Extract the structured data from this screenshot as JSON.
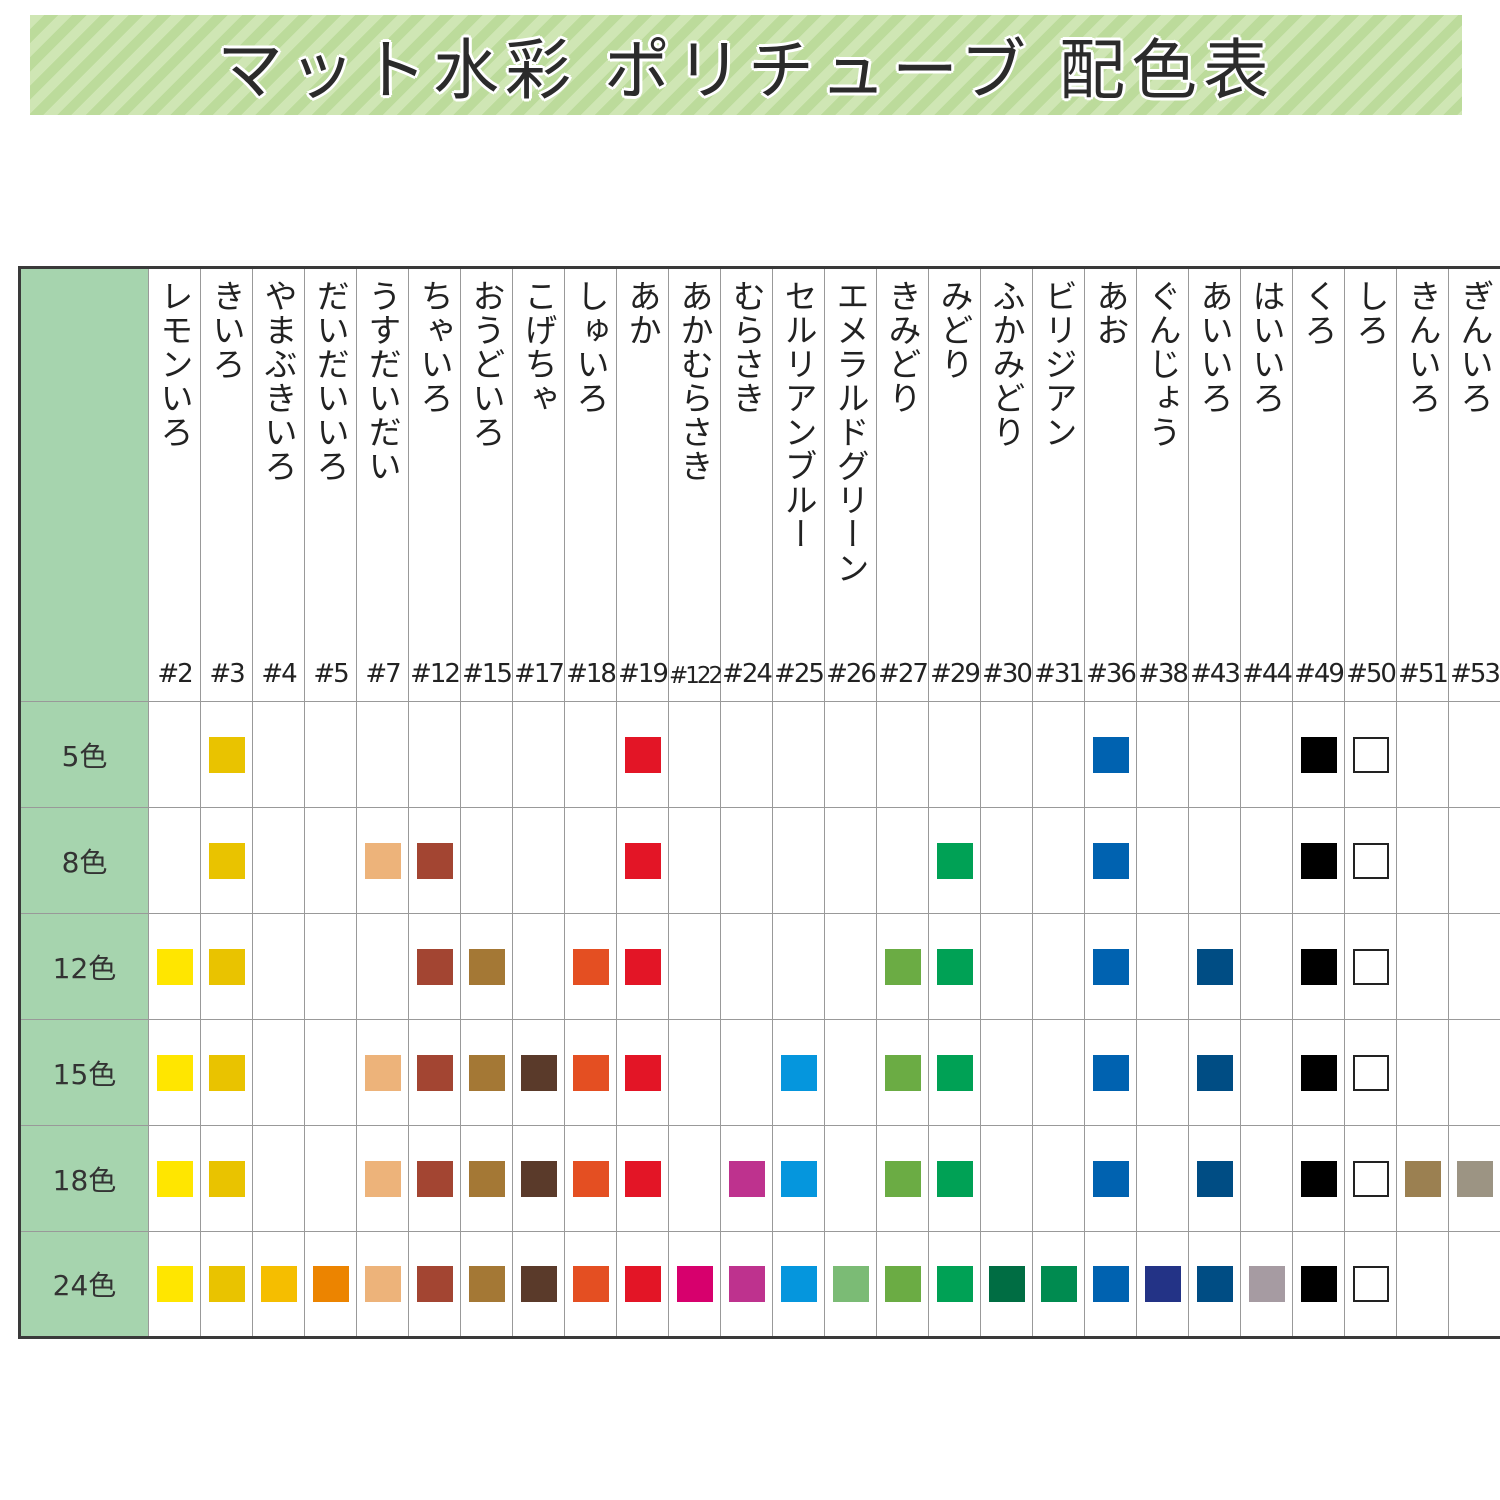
{
  "title": "マット水彩 ポリチューブ 配色表",
  "columns": [
    {
      "code": "#2",
      "name": "レモンいろ",
      "color": "#FFE600"
    },
    {
      "code": "#3",
      "name": "きいろ",
      "color": "#E9C300"
    },
    {
      "code": "#4",
      "name": "やまぶきいろ",
      "color": "#F5BE00"
    },
    {
      "code": "#5",
      "name": "だいだいいろ",
      "color": "#EC8400"
    },
    {
      "code": "#7",
      "name": "うすだいだい",
      "color": "#EDB37A"
    },
    {
      "code": "#12",
      "name": "ちゃいろ",
      "color": "#A34532"
    },
    {
      "code": "#15",
      "name": "おうどいろ",
      "color": "#A47835"
    },
    {
      "code": "#17",
      "name": "こげちゃ",
      "color": "#5A3A2A"
    },
    {
      "code": "#18",
      "name": "しゅいろ",
      "color": "#E44F22"
    },
    {
      "code": "#19",
      "name": "あか",
      "color": "#E31526"
    },
    {
      "code": "#122",
      "name": "あかむらさき",
      "color": "#D7006D"
    },
    {
      "code": "#24",
      "name": "むらさき",
      "color": "#BE328E"
    },
    {
      "code": "#25",
      "name": "セルリアンブルー",
      "color": "#0596DD"
    },
    {
      "code": "#26",
      "name": "エメラルドグリーン",
      "color": "#7BBB75"
    },
    {
      "code": "#27",
      "name": "きみどり",
      "color": "#6BAC44"
    },
    {
      "code": "#29",
      "name": "みどり",
      "color": "#00A155"
    },
    {
      "code": "#30",
      "name": "ふかみどり",
      "color": "#006D43"
    },
    {
      "code": "#31",
      "name": "ビリジアン",
      "color": "#008B50"
    },
    {
      "code": "#36",
      "name": "あお",
      "color": "#0062B0"
    },
    {
      "code": "#38",
      "name": "ぐんじょう",
      "color": "#233386"
    },
    {
      "code": "#43",
      "name": "あいいろ",
      "color": "#004D84"
    },
    {
      "code": "#44",
      "name": "はいいろ",
      "color": "#A69BA2"
    },
    {
      "code": "#49",
      "name": "くろ",
      "color": "#000000"
    },
    {
      "code": "#50",
      "name": "しろ",
      "color": "#FFFFFF"
    },
    {
      "code": "#51",
      "name": "きんいろ",
      "color": "#9B8051"
    },
    {
      "code": "#53",
      "name": "ぎんいろ",
      "color": "#9C9483"
    }
  ],
  "sets": [
    {
      "label": "5色",
      "includes": [
        "#3",
        "#19",
        "#36",
        "#49",
        "#50"
      ]
    },
    {
      "label": "8色",
      "includes": [
        "#3",
        "#7",
        "#12",
        "#19",
        "#29",
        "#36",
        "#49",
        "#50"
      ]
    },
    {
      "label": "12色",
      "includes": [
        "#2",
        "#3",
        "#12",
        "#15",
        "#18",
        "#19",
        "#27",
        "#29",
        "#36",
        "#43",
        "#49",
        "#50"
      ]
    },
    {
      "label": "15色",
      "includes": [
        "#2",
        "#3",
        "#7",
        "#12",
        "#15",
        "#17",
        "#18",
        "#19",
        "#25",
        "#27",
        "#29",
        "#36",
        "#43",
        "#49",
        "#50"
      ]
    },
    {
      "label": "18色",
      "includes": [
        "#2",
        "#3",
        "#7",
        "#12",
        "#15",
        "#17",
        "#18",
        "#19",
        "#24",
        "#25",
        "#27",
        "#29",
        "#36",
        "#43",
        "#49",
        "#50",
        "#51",
        "#53"
      ]
    },
    {
      "label": "24色",
      "includes": [
        "#2",
        "#3",
        "#4",
        "#5",
        "#7",
        "#12",
        "#15",
        "#17",
        "#18",
        "#19",
        "#122",
        "#24",
        "#25",
        "#26",
        "#27",
        "#29",
        "#30",
        "#31",
        "#36",
        "#38",
        "#43",
        "#44",
        "#49",
        "#50"
      ]
    }
  ]
}
